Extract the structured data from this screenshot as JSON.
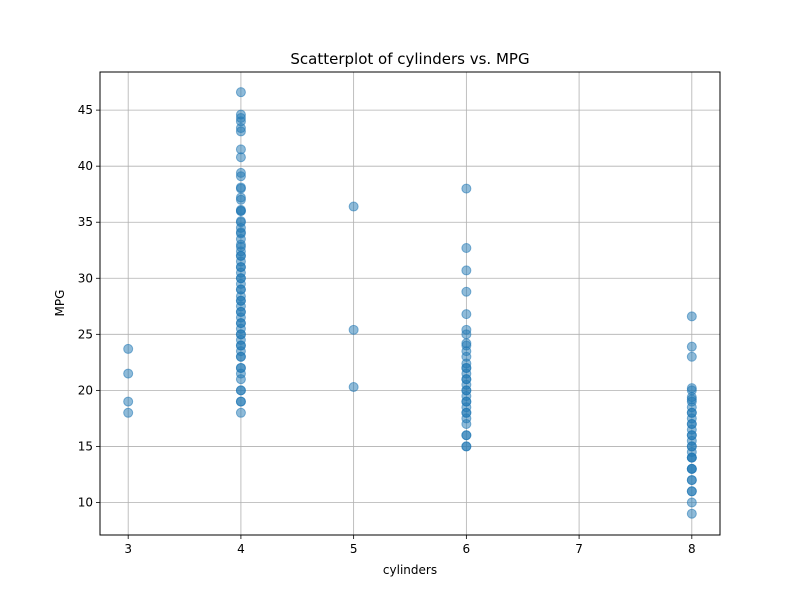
{
  "chart_data": {
    "type": "scatter",
    "title": "Scatterplot of cylinders vs. MPG",
    "xlabel": "cylinders",
    "ylabel": "MPG",
    "xlim": [
      2.75,
      8.25
    ],
    "ylim": [
      7.1,
      48.4
    ],
    "xticks": [
      3,
      4,
      5,
      6,
      7,
      8
    ],
    "yticks": [
      10,
      15,
      20,
      25,
      30,
      35,
      40,
      45
    ],
    "grid": true,
    "marker_color": "#1f77b4",
    "marker_alpha": 0.5,
    "points": [
      [
        3,
        18.0
      ],
      [
        3,
        19.0
      ],
      [
        3,
        21.5
      ],
      [
        3,
        23.7
      ],
      [
        4,
        18.0
      ],
      [
        4,
        19.0
      ],
      [
        4,
        19.0
      ],
      [
        4,
        20.0
      ],
      [
        4,
        20.0
      ],
      [
        4,
        21.0
      ],
      [
        4,
        21.5
      ],
      [
        4,
        22.0
      ],
      [
        4,
        22.0
      ],
      [
        4,
        23.0
      ],
      [
        4,
        23.0
      ],
      [
        4,
        23.5
      ],
      [
        4,
        24.0
      ],
      [
        4,
        24.0
      ],
      [
        4,
        24.5
      ],
      [
        4,
        25.0
      ],
      [
        4,
        25.0
      ],
      [
        4,
        25.5
      ],
      [
        4,
        26.0
      ],
      [
        4,
        26.0
      ],
      [
        4,
        26.5
      ],
      [
        4,
        27.0
      ],
      [
        4,
        27.0
      ],
      [
        4,
        27.5
      ],
      [
        4,
        28.0
      ],
      [
        4,
        28.0
      ],
      [
        4,
        28.4
      ],
      [
        4,
        29.0
      ],
      [
        4,
        29.0
      ],
      [
        4,
        29.5
      ],
      [
        4,
        30.0
      ],
      [
        4,
        30.0
      ],
      [
        4,
        30.5
      ],
      [
        4,
        31.0
      ],
      [
        4,
        31.0
      ],
      [
        4,
        31.5
      ],
      [
        4,
        32.0
      ],
      [
        4,
        32.0
      ],
      [
        4,
        32.4
      ],
      [
        4,
        32.8
      ],
      [
        4,
        33.0
      ],
      [
        4,
        33.5
      ],
      [
        4,
        34.0
      ],
      [
        4,
        34.1
      ],
      [
        4,
        34.5
      ],
      [
        4,
        35.0
      ],
      [
        4,
        35.1
      ],
      [
        4,
        36.0
      ],
      [
        4,
        36.0
      ],
      [
        4,
        36.1
      ],
      [
        4,
        37.0
      ],
      [
        4,
        37.2
      ],
      [
        4,
        38.0
      ],
      [
        4,
        38.1
      ],
      [
        4,
        39.1
      ],
      [
        4,
        39.4
      ],
      [
        4,
        40.8
      ],
      [
        4,
        41.5
      ],
      [
        4,
        43.1
      ],
      [
        4,
        43.4
      ],
      [
        4,
        44.0
      ],
      [
        4,
        44.3
      ],
      [
        4,
        44.6
      ],
      [
        4,
        46.6
      ],
      [
        5,
        20.3
      ],
      [
        5,
        25.4
      ],
      [
        5,
        36.4
      ],
      [
        6,
        15.0
      ],
      [
        6,
        15.0
      ],
      [
        6,
        16.0
      ],
      [
        6,
        16.0
      ],
      [
        6,
        17.0
      ],
      [
        6,
        17.5
      ],
      [
        6,
        18.0
      ],
      [
        6,
        18.0
      ],
      [
        6,
        18.5
      ],
      [
        6,
        19.0
      ],
      [
        6,
        19.0
      ],
      [
        6,
        19.5
      ],
      [
        6,
        20.0
      ],
      [
        6,
        20.0
      ],
      [
        6,
        20.5
      ],
      [
        6,
        21.0
      ],
      [
        6,
        21.0
      ],
      [
        6,
        21.5
      ],
      [
        6,
        22.0
      ],
      [
        6,
        22.0
      ],
      [
        6,
        22.4
      ],
      [
        6,
        23.0
      ],
      [
        6,
        23.5
      ],
      [
        6,
        24.0
      ],
      [
        6,
        24.2
      ],
      [
        6,
        25.0
      ],
      [
        6,
        25.4
      ],
      [
        6,
        26.8
      ],
      [
        6,
        28.8
      ],
      [
        6,
        30.7
      ],
      [
        6,
        32.7
      ],
      [
        6,
        38.0
      ],
      [
        8,
        9.0
      ],
      [
        8,
        10.0
      ],
      [
        8,
        11.0
      ],
      [
        8,
        11.0
      ],
      [
        8,
        12.0
      ],
      [
        8,
        12.0
      ],
      [
        8,
        13.0
      ],
      [
        8,
        13.0
      ],
      [
        8,
        13.0
      ],
      [
        8,
        14.0
      ],
      [
        8,
        14.0
      ],
      [
        8,
        14.0
      ],
      [
        8,
        14.5
      ],
      [
        8,
        15.0
      ],
      [
        8,
        15.0
      ],
      [
        8,
        15.5
      ],
      [
        8,
        16.0
      ],
      [
        8,
        16.0
      ],
      [
        8,
        16.5
      ],
      [
        8,
        17.0
      ],
      [
        8,
        17.0
      ],
      [
        8,
        17.5
      ],
      [
        8,
        18.0
      ],
      [
        8,
        18.0
      ],
      [
        8,
        18.5
      ],
      [
        8,
        19.0
      ],
      [
        8,
        19.2
      ],
      [
        8,
        19.4
      ],
      [
        8,
        20.0
      ],
      [
        8,
        20.2
      ],
      [
        8,
        23.0
      ],
      [
        8,
        23.9
      ],
      [
        8,
        26.6
      ]
    ]
  }
}
